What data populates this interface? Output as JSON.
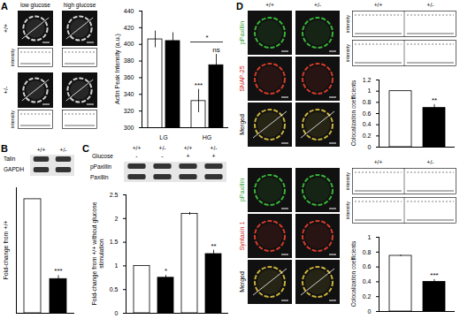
{
  "chart_data": [
    {
      "type": "bar",
      "y_label": "Actin Peak Intensity (a.u.)",
      "categories": [
        "LG",
        "HG"
      ],
      "series": [
        {
          "name": "+/+",
          "color": "#ffffff",
          "values": [
            406,
            332
          ],
          "errors": [
            10,
            14
          ],
          "significance": [
            null,
            "***"
          ]
        },
        {
          "name": "+/-",
          "color": "#000000",
          "values": [
            404,
            375
          ],
          "errors": [
            10,
            13
          ],
          "significance": [
            null,
            "ns"
          ]
        }
      ],
      "annotations": [
        {
          "text": "*",
          "category": "HG"
        }
      ],
      "ylim": [
        300,
        440
      ],
      "yticks": [
        300,
        320,
        340,
        360,
        380,
        400,
        420,
        440
      ]
    },
    {
      "type": "bar",
      "y_label": "Fold-change from +/+",
      "categories": [
        null,
        null
      ],
      "values": [
        1,
        0.3
      ],
      "errors": [
        0,
        0.03
      ],
      "significance": [
        null,
        "***"
      ],
      "colors": [
        "#ffffff",
        "#000000"
      ],
      "ylim": [
        0,
        1.1
      ],
      "yticks": [],
      "tick_labels": false
    },
    {
      "type": "bar",
      "y_label": "Fold-change from +/+ without glucose stimulation",
      "categories": [
        null,
        null,
        null,
        null
      ],
      "values": [
        1,
        0.75,
        2.1,
        1.25
      ],
      "errors": [
        0,
        0.05,
        0.03,
        0.08
      ],
      "significance": [
        null,
        "*",
        null,
        "**"
      ],
      "colors": [
        "#ffffff",
        "#000000",
        "#ffffff",
        "#000000"
      ],
      "ylim": [
        0,
        2.5
      ],
      "yticks": [
        0,
        0.5,
        1,
        1.5,
        2,
        2.5
      ]
    },
    {
      "type": "bar",
      "y_label": "Colocalization coefficients",
      "categories": [
        null,
        null
      ],
      "values": [
        1,
        0.7
      ],
      "errors": [
        0,
        0.06
      ],
      "significance": [
        null,
        "**"
      ],
      "colors": [
        "#ffffff",
        "#000000"
      ],
      "ylim": [
        0,
        1.2
      ],
      "yticks": [
        0,
        0.2,
        0.4,
        0.6,
        0.8,
        1,
        1.2
      ]
    },
    {
      "type": "bar",
      "y_label": "Colocalization coefficients",
      "categories": [
        null,
        null
      ],
      "values": [
        0.75,
        0.4
      ],
      "errors": [
        0.01,
        0.03
      ],
      "significance": [
        null,
        "***"
      ],
      "colors": [
        "#ffffff",
        "#000000"
      ],
      "ylim": [
        0,
        1
      ],
      "yticks": [
        0,
        0.2,
        0.4,
        0.6,
        0.8,
        1
      ]
    }
  ],
  "figure": {
    "A": {
      "letter": "A",
      "columns": [
        "low glucose",
        "high glucose"
      ],
      "rows": [
        "+/+",
        "+/-"
      ],
      "profile_label": "intensity"
    },
    "B": {
      "letter": "B",
      "lanes": [
        "+/+",
        "+/-"
      ],
      "blot_rows": [
        "Talin",
        "GAPDH"
      ]
    },
    "C": {
      "letter": "C",
      "lanes": [
        "+/+",
        "+/-",
        "+/+",
        "+/-"
      ],
      "condition_label": "Glucose",
      "conditions": [
        "-",
        "-",
        "+",
        "+"
      ],
      "blot_rows": [
        "pPaxillin",
        "Paxillin"
      ]
    },
    "D": {
      "letter": "D",
      "columns": [
        "+/+",
        "+/-"
      ],
      "groups": [
        {
          "rows": [
            "pPaxillin",
            "SNAP-25",
            "Merged"
          ]
        },
        {
          "rows": [
            "pPaxillin",
            "Syntaxin 1",
            "Merged"
          ]
        }
      ],
      "profile_label": "intensity"
    }
  }
}
